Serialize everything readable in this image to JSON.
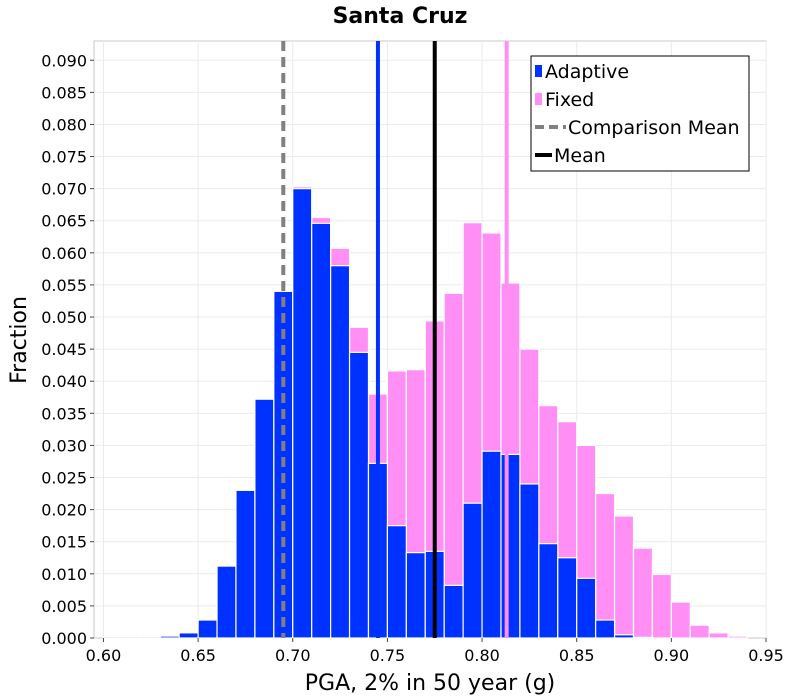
{
  "chart_data": {
    "type": "bar",
    "title": "Santa Cruz",
    "xlabel": "PGA, 2% in 50 year (g)",
    "ylabel": "Fraction",
    "xlim": [
      0.595,
      0.95
    ],
    "ylim": [
      0,
      0.093
    ],
    "xticks": [
      "0.60",
      "0.65",
      "0.70",
      "0.75",
      "0.80",
      "0.85",
      "0.90",
      "0.95"
    ],
    "yticks": [
      "0.000",
      "0.005",
      "0.010",
      "0.015",
      "0.020",
      "0.025",
      "0.030",
      "0.035",
      "0.040",
      "0.045",
      "0.050",
      "0.055",
      "0.060",
      "0.065",
      "0.070",
      "0.075",
      "0.080",
      "0.085",
      "0.090"
    ],
    "grid": true,
    "legend_position": "top-right",
    "bin_width": 0.01,
    "bin_starts": [
      0.6,
      0.61,
      0.62,
      0.63,
      0.64,
      0.65,
      0.66,
      0.67,
      0.68,
      0.69,
      0.7,
      0.71,
      0.72,
      0.73,
      0.74,
      0.75,
      0.76,
      0.77,
      0.78,
      0.79,
      0.8,
      0.81,
      0.82,
      0.83,
      0.84,
      0.85,
      0.86,
      0.87,
      0.88,
      0.89,
      0.9,
      0.91,
      0.92,
      0.93
    ],
    "series": [
      {
        "name": "Fixed",
        "color": "#ff8ff5",
        "values": [
          0.0002,
          0.0002,
          0.0002,
          0.0003,
          0.0008,
          0.0028,
          0.0112,
          0.023,
          0.0372,
          0.054,
          0.0703,
          0.0655,
          0.0607,
          0.0484,
          0.038,
          0.0416,
          0.0418,
          0.0494,
          0.0537,
          0.0647,
          0.0631,
          0.0553,
          0.045,
          0.0362,
          0.0337,
          0.03,
          0.0225,
          0.019,
          0.014,
          0.0099,
          0.0056,
          0.002,
          0.0008,
          0.0003
        ]
      },
      {
        "name": "Adaptive",
        "color": "#0032ff",
        "values": [
          0.0002,
          0.0002,
          0.0002,
          0.0003,
          0.0008,
          0.0028,
          0.0112,
          0.023,
          0.0372,
          0.054,
          0.07,
          0.0646,
          0.058,
          0.0445,
          0.0272,
          0.0175,
          0.0133,
          0.0135,
          0.0082,
          0.021,
          0.0291,
          0.0286,
          0.024,
          0.0147,
          0.0125,
          0.0093,
          0.0028,
          0.0005,
          0.0001,
          0.0,
          0.0,
          0.0,
          0.0,
          0.0
        ]
      }
    ],
    "lines": [
      {
        "name": "Comparison Mean",
        "x": 0.695,
        "color": "#808080",
        "style": "dashed"
      },
      {
        "name": "Mean",
        "x": 0.775,
        "color": "#000000",
        "style": "solid"
      },
      {
        "name": "Adaptive mean",
        "x": 0.745,
        "color": "#0032ff",
        "style": "solid"
      },
      {
        "name": "Fixed mean",
        "x": 0.813,
        "color": "#ff8ff5",
        "style": "solid"
      }
    ],
    "legend": [
      {
        "label": "Adaptive",
        "marker": "square",
        "color": "#0032ff"
      },
      {
        "label": "Fixed",
        "marker": "square",
        "color": "#ff8ff5"
      },
      {
        "label": "Comparison Mean",
        "marker": "dashed-line",
        "color": "#808080"
      },
      {
        "label": "Mean",
        "marker": "solid-line",
        "color": "#000000"
      }
    ]
  }
}
